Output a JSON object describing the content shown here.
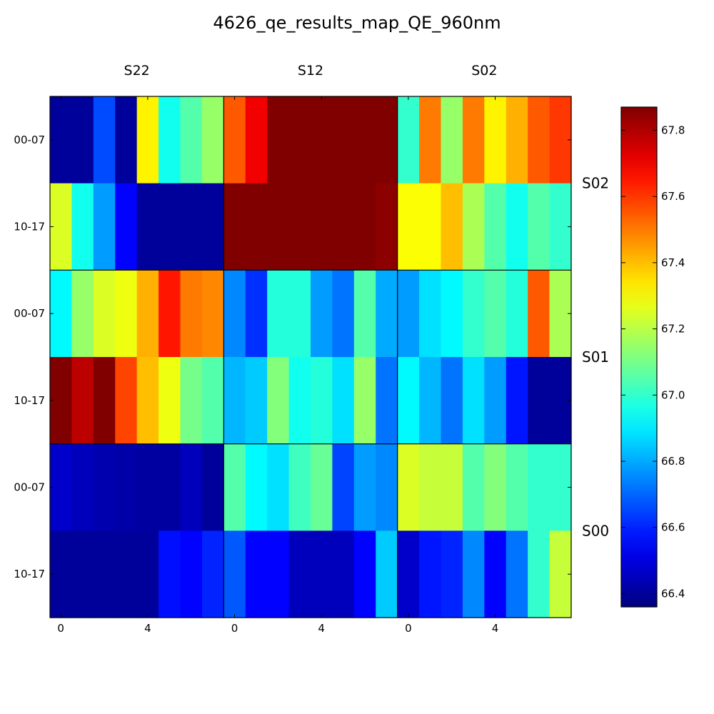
{
  "chart_data": {
    "type": "heatmap",
    "title": "4626_qe_results_map_QE_960nm",
    "column_segments": [
      "S22",
      "S12",
      "S02"
    ],
    "row_segments": [
      "S02",
      "S01",
      "S00"
    ],
    "sub_row_labels": [
      "00-07",
      "10-17"
    ],
    "x_tick_labels": [
      "0",
      "4"
    ],
    "x_tick_values": [
      0,
      4
    ],
    "colorbar": {
      "min": 66.36,
      "max": 67.87,
      "ticks": [
        66.4,
        66.6,
        66.8,
        67.0,
        67.2,
        67.4,
        67.6,
        67.8
      ],
      "tick_labels": [
        "66.4",
        "66.6",
        "66.8",
        "67.0",
        "67.2",
        "67.4",
        "67.6",
        "67.8"
      ],
      "colormap": "jet"
    },
    "grid": false,
    "values": [
      [
        66.4,
        66.4,
        66.66,
        66.4,
        67.32,
        66.95,
        67.05,
        67.15,
        67.55,
        67.7,
        67.87,
        67.87,
        67.87,
        67.87,
        67.87,
        67.87,
        67.0,
        67.5,
        67.15,
        67.5,
        67.32,
        67.42,
        67.55,
        67.6
      ],
      [
        67.25,
        66.95,
        66.78,
        66.55,
        66.4,
        66.4,
        66.4,
        66.4,
        67.87,
        67.87,
        67.87,
        67.87,
        67.87,
        67.87,
        67.87,
        67.85,
        67.3,
        67.3,
        67.4,
        67.18,
        67.05,
        66.95,
        67.05,
        67.0
      ],
      [
        66.92,
        67.15,
        67.25,
        67.28,
        67.42,
        67.65,
        67.5,
        67.48,
        66.75,
        66.62,
        66.98,
        66.98,
        66.78,
        66.72,
        67.05,
        66.8,
        66.78,
        66.88,
        66.92,
        67.0,
        67.05,
        66.98,
        67.55,
        67.18
      ],
      [
        67.87,
        67.78,
        67.87,
        67.58,
        67.4,
        67.28,
        67.1,
        67.05,
        66.82,
        66.85,
        67.12,
        66.95,
        66.98,
        66.88,
        67.15,
        66.72,
        66.92,
        66.82,
        66.72,
        66.88,
        66.78,
        66.58,
        66.4,
        66.4
      ],
      [
        66.47,
        66.45,
        66.43,
        66.42,
        66.41,
        66.41,
        66.45,
        66.4,
        67.05,
        66.92,
        66.88,
        67.02,
        67.08,
        66.65,
        66.78,
        66.75,
        67.25,
        67.22,
        67.22,
        67.05,
        67.12,
        67.05,
        67.0,
        67.0
      ],
      [
        66.4,
        66.4,
        66.4,
        66.4,
        66.4,
        66.57,
        66.55,
        66.6,
        66.68,
        66.55,
        66.55,
        66.45,
        66.45,
        66.45,
        66.55,
        66.85,
        66.47,
        66.58,
        66.6,
        66.75,
        66.55,
        66.72,
        67.0,
        67.22
      ]
    ]
  }
}
